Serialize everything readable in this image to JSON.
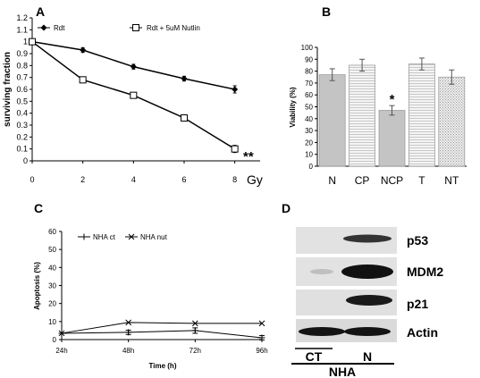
{
  "panels": {
    "a": "A",
    "b": "B",
    "c": "C",
    "d": "D"
  },
  "chart_data": [
    {
      "type": "line",
      "panel": "A",
      "ylabel": "surviving fraction",
      "x_unit": "Gy",
      "x": [
        0,
        2,
        4,
        6,
        8
      ],
      "xticks": [
        "0",
        "2",
        "4",
        "6",
        "8"
      ],
      "yticks": [
        "0",
        "0.1",
        "0.2",
        "0.3",
        "0.4",
        "0.5",
        "0.6",
        "0.7",
        "0.8",
        "0.9",
        "1",
        "1.1",
        "1.2"
      ],
      "xlim": [
        0,
        9
      ],
      "ylim": [
        0,
        1.2
      ],
      "annotation": "**",
      "series": [
        {
          "name": "Rdt",
          "marker": "diamond-filled",
          "values": [
            1.0,
            0.93,
            0.79,
            0.69,
            0.6
          ],
          "errors": [
            0.01,
            0.02,
            0.02,
            0.02,
            0.03
          ]
        },
        {
          "name": "Rdt + 5uM Nutlin",
          "marker": "square-open",
          "values": [
            1.0,
            0.68,
            0.55,
            0.36,
            0.1
          ],
          "errors": [
            0.01,
            0.01,
            0.01,
            0.01,
            0.03
          ]
        }
      ]
    },
    {
      "type": "bar",
      "panel": "B",
      "ylabel": "Viability (%)",
      "categories": [
        "N",
        "CP",
        "NCP",
        "T",
        "NT"
      ],
      "values": [
        77,
        85,
        47,
        86,
        75
      ],
      "errors": [
        5,
        5,
        4,
        5,
        6
      ],
      "fills": [
        "solid",
        "hstripe",
        "solid",
        "hstripe",
        "dots"
      ],
      "yticks": [
        "0",
        "10",
        "20",
        "30",
        "40",
        "50",
        "60",
        "70",
        "80",
        "90",
        "100"
      ],
      "ylim": [
        0,
        100
      ],
      "annotation": "*"
    },
    {
      "type": "line",
      "panel": "C",
      "ylabel": "Apoptosis (%)",
      "xlabel": "Time (h)",
      "categories": [
        "24h",
        "48h",
        "72h",
        "96h"
      ],
      "yticks": [
        "0",
        "10",
        "20",
        "30",
        "40",
        "50",
        "60"
      ],
      "ylim": [
        0,
        60
      ],
      "series": [
        {
          "name": "NHA ct",
          "marker": "plus",
          "values": [
            3.5,
            4.0,
            5.0,
            1.0
          ],
          "errors": [
            0,
            1.2,
            1.5,
            1.2
          ]
        },
        {
          "name": "NHA nut",
          "marker": "x",
          "values": [
            3.5,
            9.5,
            9.0,
            9.0
          ],
          "errors": [
            0,
            0,
            0,
            0
          ]
        }
      ]
    }
  ],
  "blot": {
    "rows": [
      "p53",
      "MDM2",
      "p21",
      "Actin"
    ],
    "lanes": [
      "CT",
      "N"
    ],
    "group": "NHA"
  }
}
